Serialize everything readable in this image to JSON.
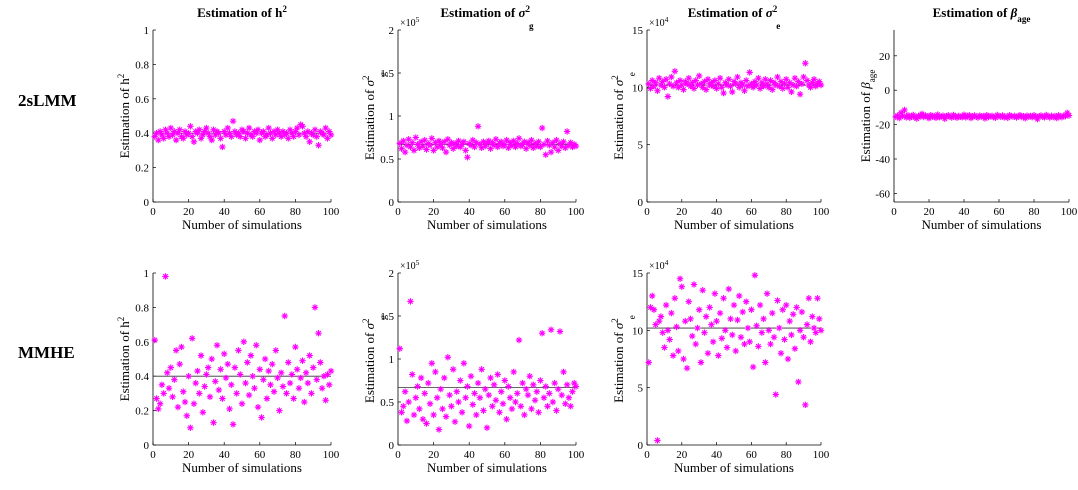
{
  "row_labels": [
    "2sLMM",
    "MMHE"
  ],
  "chart_data": [
    {
      "id": "lmm-h2",
      "row": 0,
      "col": 0,
      "type": "scatter",
      "title_main": "Estimation of h",
      "title_sup": "2",
      "title_sub": "",
      "title_greek": "",
      "ylabel_main": "Estimation of h",
      "ylabel_sup": "2",
      "ylabel_sub": "",
      "ylabel_greek": "",
      "xlabel": "Number of simulations",
      "xlim": [
        0,
        100
      ],
      "xticks": [
        0,
        20,
        40,
        60,
        80,
        100
      ],
      "ylim": [
        0,
        1
      ],
      "yticks": [
        0,
        0.2,
        0.4,
        0.6,
        0.8,
        1
      ],
      "ytick_labels": [
        "0",
        "0.2",
        "0.4",
        "0.6",
        "0.8",
        "1"
      ],
      "exponent": "",
      "reference_line": 0.4,
      "x_start": 1,
      "y": [
        0.38,
        0.4,
        0.36,
        0.41,
        0.39,
        0.37,
        0.42,
        0.4,
        0.38,
        0.43,
        0.39,
        0.41,
        0.36,
        0.4,
        0.42,
        0.38,
        0.37,
        0.41,
        0.39,
        0.4,
        0.44,
        0.38,
        0.35,
        0.41,
        0.4,
        0.42,
        0.37,
        0.39,
        0.41,
        0.43,
        0.4,
        0.38,
        0.36,
        0.42,
        0.39,
        0.41,
        0.4,
        0.37,
        0.32,
        0.41,
        0.39,
        0.43,
        0.4,
        0.38,
        0.47,
        0.41,
        0.39,
        0.4,
        0.38,
        0.42,
        0.41,
        0.37,
        0.4,
        0.43,
        0.39,
        0.38,
        0.41,
        0.4,
        0.42,
        0.36,
        0.4,
        0.41,
        0.38,
        0.39,
        0.43,
        0.4,
        0.37,
        0.41,
        0.39,
        0.42,
        0.4,
        0.38,
        0.41,
        0.39,
        0.4,
        0.37,
        0.42,
        0.4,
        0.38,
        0.41,
        0.43,
        0.39,
        0.45,
        0.44,
        0.4,
        0.38,
        0.41,
        0.35,
        0.4,
        0.39,
        0.42,
        0.38,
        0.33,
        0.41,
        0.4,
        0.39,
        0.43,
        0.37,
        0.41,
        0.39
      ]
    },
    {
      "id": "lmm-sg",
      "row": 0,
      "col": 1,
      "type": "scatter",
      "title_main": "Estimation of ",
      "title_sup": "2",
      "title_sub": "g",
      "title_greek": "σ",
      "ylabel_main": "Estimation of ",
      "ylabel_sup": "2",
      "ylabel_sub": "g",
      "ylabel_greek": "σ",
      "xlabel": "Number of simulations",
      "xlim": [
        0,
        100
      ],
      "xticks": [
        0,
        20,
        40,
        60,
        80,
        100
      ],
      "ylim": [
        0,
        2
      ],
      "yticks": [
        0,
        0.5,
        1,
        1.5,
        2
      ],
      "ytick_labels": [
        "0",
        "0.5",
        "1",
        "1.5",
        "2"
      ],
      "exponent": "×10",
      "exponent_power": "5",
      "reference_line": 0.67,
      "x_start": 1,
      "y": [
        0.68,
        0.62,
        0.71,
        0.58,
        0.66,
        0.73,
        0.64,
        0.69,
        0.6,
        0.75,
        0.67,
        0.63,
        0.7,
        0.65,
        0.72,
        0.61,
        0.68,
        0.66,
        0.74,
        0.6,
        0.69,
        0.64,
        0.71,
        0.67,
        0.63,
        0.7,
        0.58,
        0.73,
        0.66,
        0.69,
        0.62,
        0.68,
        0.65,
        0.71,
        0.64,
        0.67,
        0.7,
        0.6,
        0.52,
        0.68,
        0.66,
        0.72,
        0.64,
        0.69,
        0.88,
        0.67,
        0.63,
        0.7,
        0.65,
        0.68,
        0.71,
        0.62,
        0.69,
        0.66,
        0.73,
        0.64,
        0.68,
        0.7,
        0.65,
        0.67,
        0.72,
        0.63,
        0.69,
        0.66,
        0.71,
        0.64,
        0.68,
        0.74,
        0.65,
        0.67,
        0.7,
        0.62,
        0.69,
        0.66,
        0.72,
        0.63,
        0.68,
        0.65,
        0.7,
        0.64,
        0.86,
        0.67,
        0.55,
        0.71,
        0.66,
        0.58,
        0.69,
        0.64,
        0.72,
        0.6,
        0.68,
        0.65,
        0.7,
        0.63,
        0.82,
        0.66,
        0.69,
        0.64,
        0.67,
        0.65
      ]
    },
    {
      "id": "lmm-se",
      "row": 0,
      "col": 2,
      "type": "scatter",
      "title_main": "Estimation of ",
      "title_sup": "2",
      "title_sub": "e",
      "title_greek": "σ",
      "ylabel_main": "Estimation of ",
      "ylabel_sup": "2",
      "ylabel_sub": "e",
      "ylabel_greek": "σ",
      "xlabel": "Number of simulations",
      "xlim": [
        0,
        100
      ],
      "xticks": [
        0,
        20,
        40,
        60,
        80,
        100
      ],
      "ylim": [
        0,
        15
      ],
      "yticks": [
        0,
        5,
        10,
        15
      ],
      "ytick_labels": [
        "0",
        "5",
        "10",
        "15"
      ],
      "exponent": "×10",
      "exponent_power": "4",
      "reference_line": 10.2,
      "x_start": 1,
      "y": [
        10.3,
        9.9,
        10.6,
        10.1,
        10.4,
        9.7,
        10.8,
        10.2,
        10.5,
        10.0,
        10.7,
        9.2,
        10.3,
        10.9,
        10.1,
        11.4,
        10.4,
        10.0,
        10.6,
        10.2,
        9.8,
        10.5,
        10.3,
        10.8,
        10.1,
        10.4,
        9.9,
        10.6,
        10.2,
        11.0,
        10.3,
        10.0,
        10.5,
        9.8,
        10.7,
        10.2,
        10.4,
        10.1,
        10.6,
        9.9,
        10.3,
        10.8,
        10.0,
        9.5,
        10.4,
        10.2,
        10.7,
        10.1,
        9.6,
        10.5,
        10.3,
        10.9,
        10.0,
        10.4,
        10.2,
        9.7,
        10.6,
        10.1,
        11.3,
        10.3,
        10.0,
        10.5,
        10.2,
        10.8,
        9.9,
        10.4,
        10.1,
        10.7,
        10.3,
        10.0,
        10.6,
        9.8,
        10.4,
        10.2,
        10.9,
        10.1,
        10.5,
        9.9,
        10.3,
        10.7,
        10.0,
        10.4,
        9.6,
        10.2,
        10.8,
        10.1,
        10.5,
        9.4,
        10.3,
        10.9,
        12.1,
        10.6,
        10.2,
        10.0,
        10.4,
        10.7,
        10.1,
        10.3,
        10.5,
        10.2
      ]
    },
    {
      "id": "lmm-beta",
      "row": 0,
      "col": 3,
      "type": "scatter",
      "title_main": "Estimation of ",
      "title_sup": "",
      "title_sub": "age",
      "title_greek": "β",
      "ylabel_main": "Estimation of ",
      "ylabel_sup": "",
      "ylabel_sub": "age",
      "ylabel_greek": "β",
      "xlabel": "Number of simulations",
      "xlim": [
        0,
        100
      ],
      "xticks": [
        0,
        20,
        40,
        60,
        80,
        100
      ],
      "ylim": [
        -65,
        35
      ],
      "yticks": [
        -60,
        -40,
        -20,
        0,
        20
      ],
      "ytick_labels": [
        "-60",
        "-40",
        "-20",
        "0",
        "20"
      ],
      "exponent": "",
      "reference_line": -15,
      "x_start": 1,
      "y": [
        -15.5,
        -14.8,
        -16.2,
        -13.1,
        -15.0,
        -11.5,
        -15.8,
        -14.6,
        -16.0,
        -15.2,
        -14.4,
        -15.9,
        -16.5,
        -14.9,
        -15.3,
        -13.8,
        -15.6,
        -14.7,
        -15.1,
        -16.3,
        -14.5,
        -15.4,
        -15.0,
        -16.1,
        -14.2,
        -15.7,
        -15.3,
        -14.8,
        -16.6,
        -15.1,
        -14.6,
        -15.5,
        -15.9,
        -14.4,
        -15.2,
        -16.0,
        -14.9,
        -15.4,
        -15.7,
        -14.3,
        -15.8,
        -15.0,
        -14.6,
        -16.2,
        -15.1,
        -14.7,
        -15.5,
        -15.9,
        -14.8,
        -15.3,
        -15.0,
        -16.4,
        -14.5,
        -15.6,
        -15.2,
        -14.9,
        -15.7,
        -16.0,
        -14.4,
        -15.1,
        -15.5,
        -14.7,
        -15.8,
        -15.3,
        -16.1,
        -14.6,
        -15.0,
        -15.4,
        -14.9,
        -15.9,
        -15.2,
        -14.5,
        -15.6,
        -15.1,
        -16.3,
        -14.8,
        -15.4,
        -15.0,
        -15.7,
        -14.6,
        -15.3,
        -16.8,
        -15.1,
        -14.7,
        -15.5,
        -15.8,
        -14.4,
        -15.2,
        -15.9,
        -14.9,
        -15.6,
        -15.0,
        -16.2,
        -14.6,
        -15.3,
        -15.7,
        -14.8,
        -15.1,
        -13.2,
        -14.7
      ]
    },
    {
      "id": "mmhe-h2",
      "row": 1,
      "col": 0,
      "type": "scatter",
      "title_main": "",
      "title_sup": "",
      "title_sub": "",
      "title_greek": "",
      "ylabel_main": "Estimation of h",
      "ylabel_sup": "2",
      "ylabel_sub": "",
      "ylabel_greek": "",
      "xlabel": "Number of simulations",
      "xlim": [
        0,
        100
      ],
      "xticks": [
        0,
        20,
        40,
        60,
        80,
        100
      ],
      "ylim": [
        0,
        1
      ],
      "yticks": [
        0,
        0.2,
        0.4,
        0.6,
        0.8,
        1
      ],
      "ytick_labels": [
        "0",
        "0.2",
        "0.4",
        "0.6",
        "0.8",
        "1"
      ],
      "exponent": "",
      "reference_line": 0.4,
      "x_start": 1,
      "y": [
        0.61,
        0.27,
        0.21,
        0.24,
        0.35,
        0.3,
        0.98,
        0.42,
        0.33,
        0.45,
        0.28,
        0.38,
        0.55,
        0.22,
        0.47,
        0.57,
        0.31,
        0.25,
        0.17,
        0.4,
        0.1,
        0.62,
        0.24,
        0.36,
        0.43,
        0.3,
        0.52,
        0.19,
        0.34,
        0.41,
        0.45,
        0.28,
        0.5,
        0.13,
        0.37,
        0.58,
        0.32,
        0.44,
        0.27,
        0.53,
        0.39,
        0.47,
        0.21,
        0.35,
        0.12,
        0.45,
        0.3,
        0.55,
        0.41,
        0.24,
        0.6,
        0.36,
        0.48,
        0.29,
        0.52,
        0.4,
        0.33,
        0.58,
        0.22,
        0.44,
        0.16,
        0.38,
        0.5,
        0.27,
        0.43,
        0.35,
        0.47,
        0.31,
        0.55,
        0.39,
        0.2,
        0.42,
        0.34,
        0.75,
        0.3,
        0.48,
        0.36,
        0.41,
        0.27,
        0.57,
        0.44,
        0.33,
        0.39,
        0.49,
        0.25,
        0.42,
        0.36,
        0.52,
        0.3,
        0.45,
        0.8,
        0.38,
        0.65,
        0.48,
        0.33,
        0.4,
        0.26,
        0.41,
        0.35,
        0.43
      ]
    },
    {
      "id": "mmhe-sg",
      "row": 1,
      "col": 1,
      "type": "scatter",
      "title_main": "",
      "title_sup": "",
      "title_sub": "",
      "title_greek": "",
      "ylabel_main": "Estimation of ",
      "ylabel_sup": "2",
      "ylabel_sub": "g",
      "ylabel_greek": "σ",
      "xlabel": "Number of simulations",
      "xlim": [
        0,
        100
      ],
      "xticks": [
        0,
        20,
        40,
        60,
        80,
        100
      ],
      "ylim": [
        0,
        2
      ],
      "yticks": [
        0,
        0.5,
        1,
        1.5,
        2
      ],
      "ytick_labels": [
        "0",
        "0.5",
        "1",
        "1.5",
        "2"
      ],
      "exponent": "×10",
      "exponent_power": "5",
      "reference_line": 0.67,
      "x_start": 1,
      "y": [
        1.12,
        0.38,
        0.45,
        0.62,
        0.28,
        0.5,
        1.67,
        0.82,
        0.35,
        0.55,
        0.68,
        0.42,
        0.78,
        0.3,
        0.6,
        0.25,
        0.72,
        0.48,
        0.95,
        0.35,
        0.85,
        0.55,
        0.18,
        0.65,
        0.42,
        0.78,
        0.33,
        1.02,
        0.58,
        0.45,
        0.88,
        0.27,
        0.62,
        0.5,
        0.75,
        0.38,
        0.95,
        0.55,
        0.68,
        0.22,
        0.8,
        0.47,
        0.6,
        0.35,
        0.72,
        0.55,
        0.88,
        0.4,
        0.65,
        0.2,
        0.58,
        0.78,
        0.45,
        0.7,
        0.52,
        0.82,
        0.38,
        0.62,
        0.48,
        0.75,
        0.3,
        0.68,
        0.55,
        0.42,
        0.85,
        0.5,
        0.6,
        1.22,
        0.45,
        0.72,
        0.35,
        0.65,
        0.58,
        0.8,
        0.42,
        0.7,
        0.52,
        0.62,
        0.38,
        0.75,
        1.3,
        0.55,
        0.68,
        0.45,
        0.6,
        1.34,
        0.5,
        0.72,
        0.4,
        0.65,
        1.32,
        0.58,
        0.85,
        0.48,
        0.7,
        0.55,
        0.45,
        0.62,
        0.72,
        0.68
      ]
    },
    {
      "id": "mmhe-se",
      "row": 1,
      "col": 2,
      "type": "scatter",
      "title_main": "",
      "title_sup": "",
      "title_sub": "",
      "title_greek": "",
      "ylabel_main": "Estimation of ",
      "ylabel_sup": "2",
      "ylabel_sub": "e",
      "ylabel_greek": "σ",
      "xlabel": "Number of simulations",
      "xlim": [
        0,
        100
      ],
      "xticks": [
        0,
        20,
        40,
        60,
        80,
        100
      ],
      "ylim": [
        0,
        15
      ],
      "yticks": [
        0,
        5,
        10,
        15
      ],
      "ytick_labels": [
        "0",
        "5",
        "10",
        "15"
      ],
      "exponent": "×10",
      "exponent_power": "4",
      "reference_line": 10.2,
      "x_start": 1,
      "y": [
        7.2,
        12.0,
        13.0,
        11.8,
        10.5,
        0.4,
        10.8,
        11.2,
        9.8,
        8.5,
        12.2,
        10.0,
        9.2,
        11.5,
        7.8,
        12.8,
        10.3,
        8.2,
        14.5,
        13.8,
        7.5,
        10.8,
        6.7,
        12.5,
        11.0,
        9.5,
        14.0,
        8.8,
        10.2,
        11.8,
        7.2,
        13.5,
        9.8,
        11.2,
        8.0,
        12.0,
        10.5,
        9.0,
        13.2,
        10.8,
        7.8,
        11.5,
        9.3,
        12.8,
        10.0,
        8.5,
        13.6,
        11.0,
        9.6,
        12.2,
        8.2,
        10.9,
        13.0,
        9.4,
        11.6,
        8.8,
        12.5,
        10.2,
        9.0,
        11.8,
        6.8,
        14.8,
        10.4,
        8.6,
        12.2,
        9.8,
        11.0,
        7.2,
        13.2,
        10.0,
        8.8,
        11.5,
        9.4,
        4.4,
        12.6,
        10.2,
        8.0,
        11.8,
        9.2,
        12.2,
        7.5,
        10.8,
        9.6,
        11.4,
        8.4,
        12.0,
        5.5,
        10.0,
        11.6,
        9.4,
        3.5,
        10.5,
        12.8,
        9.0,
        11.2,
        10.2,
        9.8,
        12.8,
        11.0,
        10.0
      ]
    }
  ]
}
